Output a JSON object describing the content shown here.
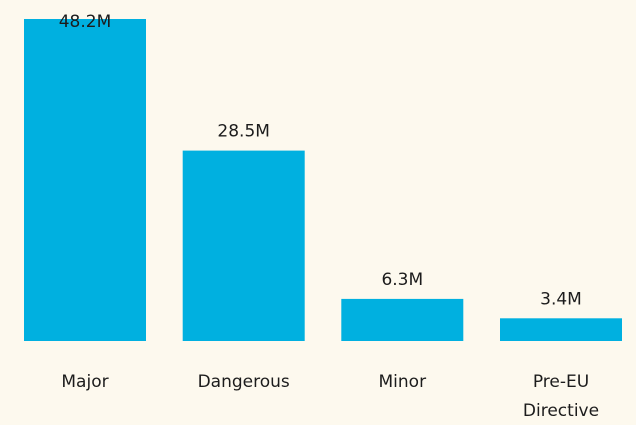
{
  "chart_data": {
    "type": "bar",
    "categories": [
      [
        "Major"
      ],
      [
        "Dangerous"
      ],
      [
        "Minor"
      ],
      [
        "Pre-EU",
        "Directive"
      ]
    ],
    "values": [
      48.2,
      28.5,
      6.3,
      3.4
    ],
    "value_labels": [
      "48.2M",
      "28.5M",
      "6.3M",
      "3.4M"
    ],
    "ylim": [
      0,
      48.2
    ],
    "grid": false,
    "bar_color": "#00b0e0"
  }
}
